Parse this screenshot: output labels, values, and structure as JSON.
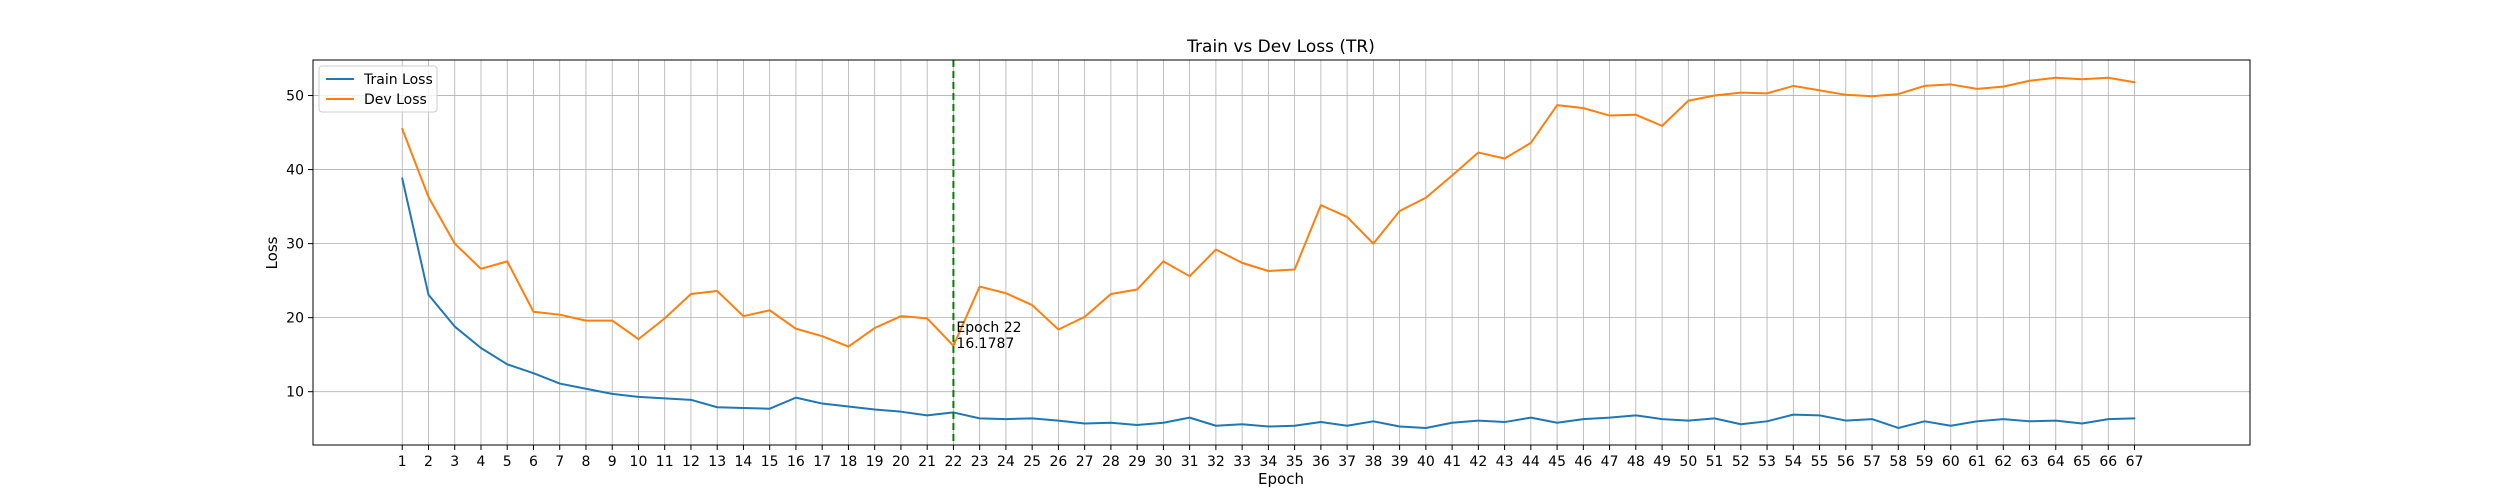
{
  "chart_data": {
    "type": "line",
    "title": "Train vs Dev Loss (TR)",
    "xlabel": "Epoch",
    "ylabel": "Loss",
    "x": [
      1,
      2,
      3,
      4,
      5,
      6,
      7,
      8,
      9,
      10,
      11,
      12,
      13,
      14,
      15,
      16,
      17,
      18,
      19,
      20,
      21,
      22,
      23,
      24,
      25,
      26,
      27,
      28,
      29,
      30,
      31,
      32,
      33,
      34,
      35,
      36,
      37,
      38,
      39,
      40,
      41,
      42,
      43,
      44,
      45,
      46,
      47,
      48,
      49,
      50,
      51,
      52,
      53,
      54,
      55,
      56,
      57,
      58,
      59,
      60,
      61,
      62,
      63,
      64,
      65,
      66,
      67
    ],
    "xlim": [
      -2.4,
      71.4
    ],
    "ylim": [
      2.8,
      54.8
    ],
    "yticks": [
      10,
      20,
      30,
      40,
      50
    ],
    "grid": true,
    "legend_position": "top-left",
    "series": [
      {
        "name": "Train Loss",
        "color": "#1f77b4",
        "values": [
          38.8,
          23.1,
          18.8,
          15.9,
          13.7,
          12.5,
          11.1,
          10.4,
          9.7,
          9.3,
          9.1,
          8.9,
          7.9,
          7.8,
          7.7,
          9.2,
          8.4,
          8.0,
          7.6,
          7.3,
          6.8,
          7.2,
          6.4,
          6.3,
          6.4,
          6.1,
          5.7,
          5.8,
          5.5,
          5.8,
          6.5,
          5.4,
          5.6,
          5.3,
          5.4,
          5.9,
          5.4,
          6.0,
          5.3,
          5.1,
          5.8,
          6.1,
          5.9,
          6.5,
          5.8,
          6.3,
          6.5,
          6.8,
          6.3,
          6.1,
          6.4,
          5.6,
          6.0,
          6.9,
          6.8,
          6.1,
          6.3,
          5.1,
          6.0,
          5.4,
          6.0,
          6.3,
          6.0,
          6.1,
          5.7,
          6.3,
          6.4
        ]
      },
      {
        "name": "Dev Loss",
        "color": "#ff7f0e",
        "values": [
          45.5,
          36.3,
          30.0,
          26.6,
          27.6,
          20.8,
          20.4,
          19.6,
          19.6,
          17.1,
          19.9,
          23.2,
          23.6,
          20.2,
          21.0,
          18.5,
          17.5,
          16.1,
          18.6,
          20.2,
          19.9,
          16.2,
          24.2,
          23.3,
          21.7,
          18.4,
          20.1,
          23.2,
          23.8,
          27.6,
          25.6,
          29.2,
          27.4,
          26.3,
          26.5,
          35.2,
          33.6,
          30.0,
          34.4,
          36.2,
          39.2,
          42.3,
          41.5,
          43.6,
          48.7,
          48.3,
          47.3,
          47.4,
          45.9,
          49.3,
          50.0,
          50.4,
          50.3,
          51.3,
          50.7,
          50.1,
          49.9,
          50.2,
          51.3,
          51.5,
          50.9,
          51.2,
          52.0,
          52.4,
          52.2,
          52.4,
          51.8
        ]
      }
    ],
    "marker": {
      "epoch": 22,
      "color": "#008000",
      "annotation_line1": "Epoch 22",
      "annotation_line2": "16.1787",
      "annotation_value": 16.1787
    }
  }
}
